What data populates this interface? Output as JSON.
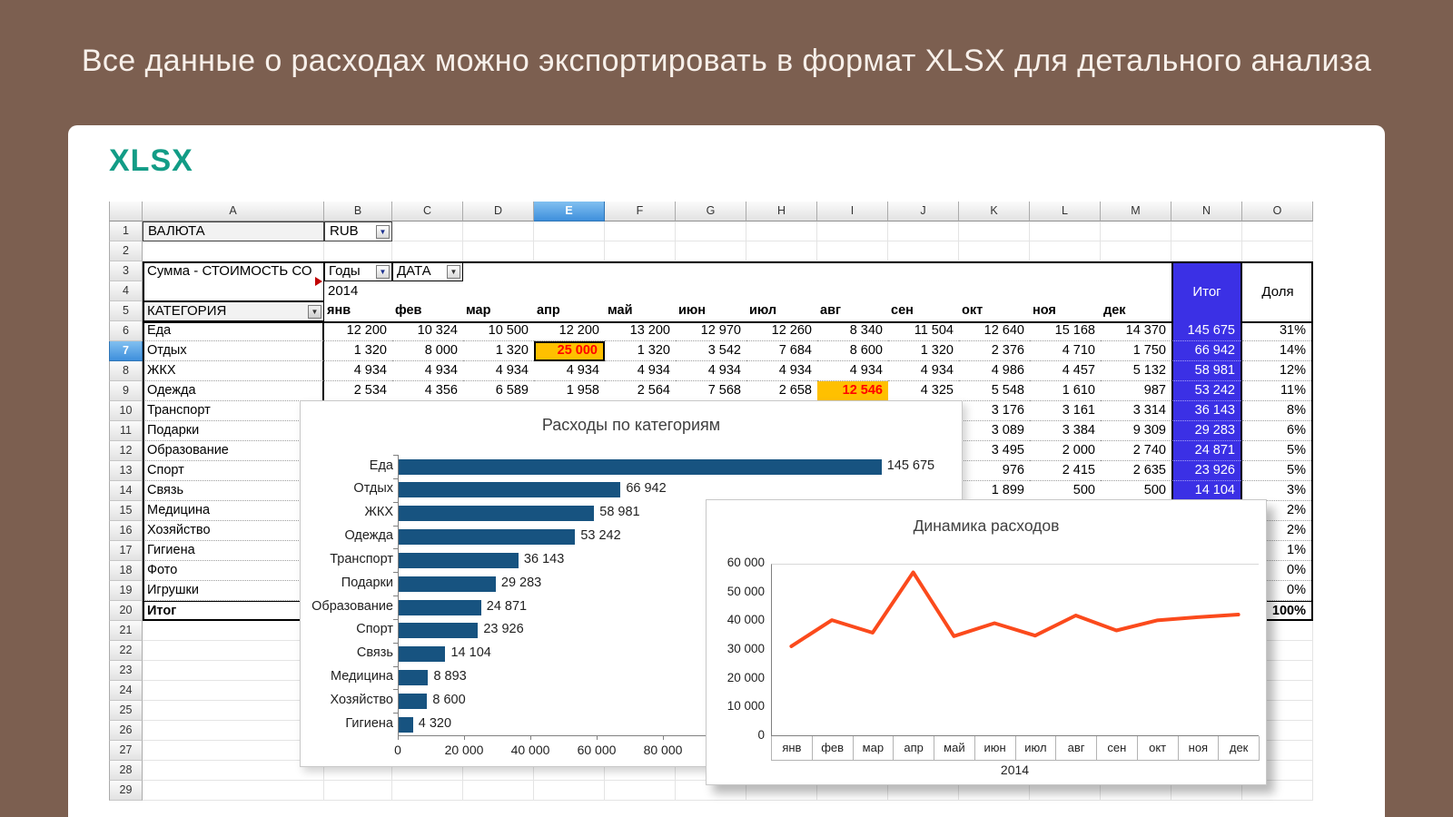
{
  "banner": {
    "title": "Все данные о расходах можно экспортировать в формат XLSX для детального анализа"
  },
  "card": {
    "heading": "XLSX"
  },
  "colors": {
    "background": "#7C5F50",
    "heading_teal": "#129C86",
    "total_column": "#3B30E5",
    "highlight_fill": "#FFC000",
    "highlight_text": "#FF0000",
    "selected_header": "#4D9BE0",
    "bar": "#175380",
    "line": "#FB4A1C"
  },
  "sheet": {
    "columns": [
      "A",
      "B",
      "C",
      "D",
      "E",
      "F",
      "G",
      "H",
      "I",
      "J",
      "K",
      "L",
      "M",
      "N",
      "O"
    ],
    "selected_column": "E",
    "selected_row": 7,
    "rows_total": 29,
    "currency_label": "ВАЛЮТА",
    "currency_value": "RUB",
    "pivot_title": "Сумма - СТОИМОСТЬ СО",
    "years_filter": "Годы",
    "date_filter": "ДАТА",
    "year_value": "2014",
    "category_header": "КАТЕГОРИЯ",
    "months": [
      "янв",
      "фев",
      "мар",
      "апр",
      "май",
      "июн",
      "июл",
      "авг",
      "сен",
      "окт",
      "ноя",
      "дек"
    ],
    "total_header": "Итог",
    "share_header": "Доля",
    "data_rows": [
      {
        "category": "Еда",
        "values": [
          12200,
          10324,
          10500,
          12200,
          13200,
          12970,
          12260,
          8340,
          11504,
          12640,
          15168,
          14370
        ],
        "total": 145675,
        "share": "31%"
      },
      {
        "category": "Отдых",
        "values": [
          1320,
          8000,
          1320,
          25000,
          1320,
          3542,
          7684,
          8600,
          1320,
          2376,
          4710,
          1750
        ],
        "total": 66942,
        "share": "14%"
      },
      {
        "category": "ЖКХ",
        "values": [
          4934,
          4934,
          4934,
          4934,
          4934,
          4934,
          4934,
          4934,
          4934,
          4986,
          4457,
          5132
        ],
        "total": 58981,
        "share": "12%"
      },
      {
        "category": "Одежда",
        "values": [
          2534,
          4356,
          6589,
          1958,
          2564,
          7568,
          2658,
          12546,
          4325,
          5548,
          1610,
          987
        ],
        "total": 53242,
        "share": "11%"
      },
      {
        "category": "Транспорт",
        "values": [
          null,
          null,
          null,
          null,
          null,
          null,
          null,
          null,
          null,
          3176,
          3161,
          3314
        ],
        "total": 36143,
        "share": "8%"
      },
      {
        "category": "Подарки",
        "values": [
          null,
          null,
          null,
          null,
          null,
          null,
          null,
          null,
          null,
          3089,
          3384,
          9309
        ],
        "total": 29283,
        "share": "6%"
      },
      {
        "category": "Образование",
        "values": [
          null,
          null,
          null,
          null,
          null,
          null,
          null,
          null,
          null,
          3495,
          2000,
          2740
        ],
        "total": 24871,
        "share": "5%"
      },
      {
        "category": "Спорт",
        "values": [
          null,
          null,
          null,
          null,
          null,
          null,
          null,
          null,
          null,
          976,
          2415,
          2635
        ],
        "total": 23926,
        "share": "5%"
      },
      {
        "category": "Связь",
        "values": [
          null,
          null,
          null,
          null,
          null,
          null,
          null,
          null,
          null,
          1899,
          500,
          500
        ],
        "total": 14104,
        "share": "3%"
      },
      {
        "category": "Медицина",
        "values": [
          null,
          null,
          null,
          null,
          null,
          null,
          null,
          null,
          null,
          null,
          null,
          null
        ],
        "total": null,
        "share": "2%"
      },
      {
        "category": "Хозяйство",
        "values": [
          null,
          null,
          null,
          null,
          null,
          null,
          null,
          null,
          null,
          null,
          null,
          null
        ],
        "total": null,
        "share": "2%"
      },
      {
        "category": "Гигиена",
        "values": [
          null,
          null,
          null,
          null,
          null,
          null,
          null,
          null,
          null,
          null,
          null,
          null
        ],
        "total": null,
        "share": "1%"
      },
      {
        "category": "Фото",
        "values": [
          null,
          null,
          null,
          null,
          null,
          null,
          null,
          null,
          null,
          null,
          null,
          null
        ],
        "total": null,
        "share": "0%"
      },
      {
        "category": "Игрушки",
        "values": [
          null,
          null,
          null,
          null,
          null,
          null,
          null,
          null,
          null,
          null,
          null,
          null
        ],
        "total": null,
        "share": "0%"
      },
      {
        "category": "Итог",
        "values": [
          null,
          null,
          null,
          null,
          null,
          null,
          null,
          null,
          null,
          null,
          null,
          null
        ],
        "total": null,
        "share": "100%",
        "bold": true
      }
    ],
    "highlights": [
      {
        "row_index": 1,
        "value_index": 3,
        "selected": true
      },
      {
        "row_index": 3,
        "value_index": 7,
        "selected": false
      }
    ]
  },
  "chart_data": [
    {
      "type": "bar",
      "title": "Расходы по категориям",
      "categories": [
        "Еда",
        "Отдых",
        "ЖКХ",
        "Одежда",
        "Транспорт",
        "Подарки",
        "Образование",
        "Спорт",
        "Связь",
        "Медицина",
        "Хозяйство",
        "Гигиена"
      ],
      "values": [
        145675,
        66942,
        58981,
        53242,
        36143,
        29283,
        24871,
        23926,
        14104,
        8893,
        8600,
        4320
      ],
      "x_ticks": [
        "0",
        "20 000",
        "40 000",
        "60 000",
        "80 000"
      ],
      "x_tick_step": 20000,
      "xlim": [
        0,
        164000
      ],
      "orientation": "horizontal",
      "bar_color": "#175380",
      "legend": "none"
    },
    {
      "type": "line",
      "title": "Динамика расходов",
      "x": [
        "янв",
        "фев",
        "мар",
        "апр",
        "май",
        "июн",
        "июл",
        "авг",
        "сен",
        "окт",
        "ноя",
        "дек"
      ],
      "xlabel": "2014",
      "values": [
        31300,
        40400,
        36000,
        57000,
        34800,
        39300,
        35000,
        42000,
        36800,
        40300,
        41400,
        42300
      ],
      "y_ticks": [
        "60 000",
        "50 000",
        "40 000",
        "30 000",
        "20 000",
        "10 000",
        "0"
      ],
      "ylim": [
        0,
        60000
      ],
      "grid": "off",
      "line_color": "#FB4A1C",
      "legend": "none"
    }
  ]
}
